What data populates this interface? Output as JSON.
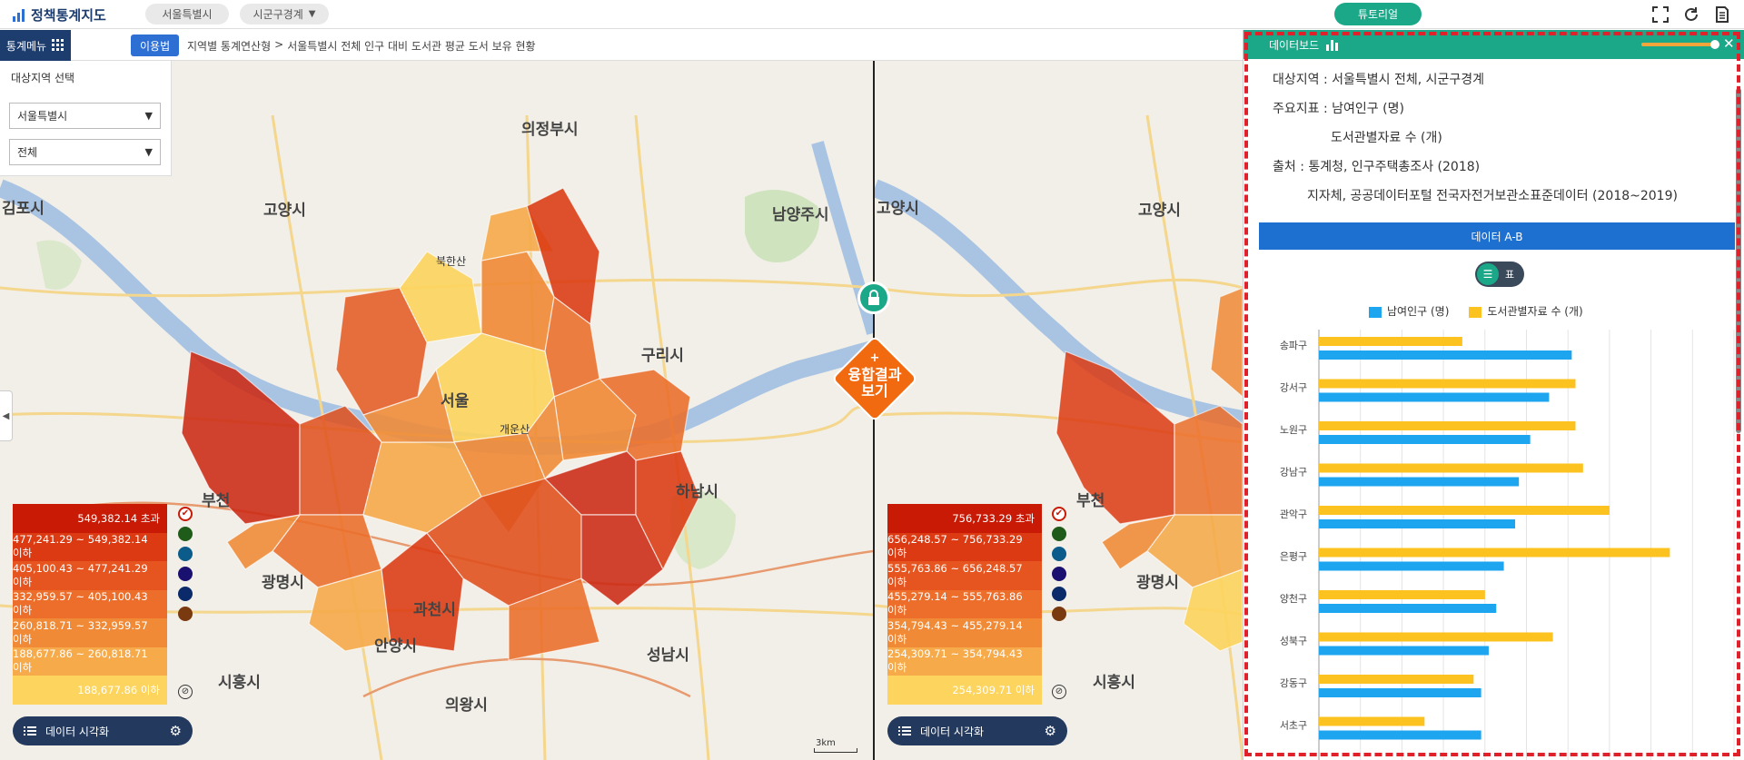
{
  "app": {
    "title": "정책통계지도",
    "region_pill": "서울특별시",
    "boundary_pill": "시군구경계",
    "tutorial": "튜토리얼"
  },
  "toolbar": {
    "stat_menu": "통계메뉴",
    "guide": "이용법",
    "breadcrumb_1": "지역별 통계연산형",
    "breadcrumb_sep": ">",
    "breadcrumb_2": "서울특별시 전체 인구 대비 도서관 평균 도서 보유 현황"
  },
  "region_panel": {
    "title": "대상지역 선택",
    "sido": "서울특별시",
    "sigungu": "전체"
  },
  "legend_left": {
    "rows": [
      "549,382.14 초과",
      "477,241.29 ~ 549,382.14 이하",
      "405,100.43 ~ 477,241.29 이하",
      "332,959.57 ~ 405,100.43 이하",
      "260,818.71 ~ 332,959.57 이하",
      "188,677.86 ~ 260,818.71 이하",
      "188,677.86 이하"
    ],
    "viz_label": "데이터 시각화"
  },
  "legend_right": {
    "rows": [
      "756,733.29 초과",
      "656,248.57 ~ 756,733.29 이하",
      "555,763.86 ~ 656,248.57 이하",
      "455,279.14 ~ 555,763.86 이하",
      "354,794.43 ~ 455,279.14 이하",
      "254,309.71 ~ 354,794.43 이하",
      "254,309.71 이하"
    ],
    "viz_label": "데이터 시각화"
  },
  "legend_colors": [
    "#c81a05",
    "#dc3a12",
    "#e6541f",
    "#ec6e2a",
    "#f08a36",
    "#f6aa4a",
    "#fcd45e"
  ],
  "dot_colors": [
    "#ffffff",
    "#1f5c1a",
    "#0b5c8a",
    "#1a1070",
    "#0a2a6a",
    "#7a3a10"
  ],
  "fusion": {
    "line1": "+",
    "line2": "융합결과",
    "line3": "보기"
  },
  "map_labels": [
    {
      "text": "의정부시"
    },
    {
      "text": "남양주시"
    },
    {
      "text": "구리시"
    },
    {
      "text": "하남시"
    },
    {
      "text": "고양시"
    },
    {
      "text": "김포시"
    },
    {
      "text": "부천"
    },
    {
      "text": "광명시"
    },
    {
      "text": "과천시"
    },
    {
      "text": "안양시"
    },
    {
      "text": "시흥시"
    },
    {
      "text": "의왕시"
    },
    {
      "text": "성남시"
    },
    {
      "text": "서울"
    }
  ],
  "scale": "3km",
  "dashboard": {
    "title": "데이터보드",
    "target_label": "대상지역 :",
    "target_value": "서울특별시 전체, 시군구경계",
    "indicator_label": "주요지표 :",
    "indicator_1": "남여인구 (명)",
    "indicator_2": "도서관별자료 수 (개)",
    "source_label": "출처 :",
    "source_1": "통계청, 인구주택총조사 (2018)",
    "source_2": "지자체, 공공데이터포털 전국자전거보관소표준데이터 (2018~2019)",
    "ab_bar": "데이터 A-B",
    "toggle_right": "표"
  },
  "chart_data": {
    "type": "bar",
    "orientation": "horizontal",
    "categories": [
      "송파구",
      "강서구",
      "노원구",
      "강남구",
      "관악구",
      "은평구",
      "양천구",
      "성북구",
      "강동구",
      "서초구"
    ],
    "series": [
      {
        "name": "남여인구 (명)",
        "color": "#1ea5f0",
        "values": [
          67,
          61,
          56,
          53,
          52,
          49,
          47,
          45,
          43,
          43
        ]
      },
      {
        "name": "도서관별자료 수 (개)",
        "color": "#fcc21f",
        "values": [
          38,
          68,
          68,
          70,
          77,
          93,
          44,
          62,
          41,
          28
        ]
      }
    ],
    "xlim": [
      0,
      110
    ],
    "grid": true,
    "legend": "top"
  }
}
